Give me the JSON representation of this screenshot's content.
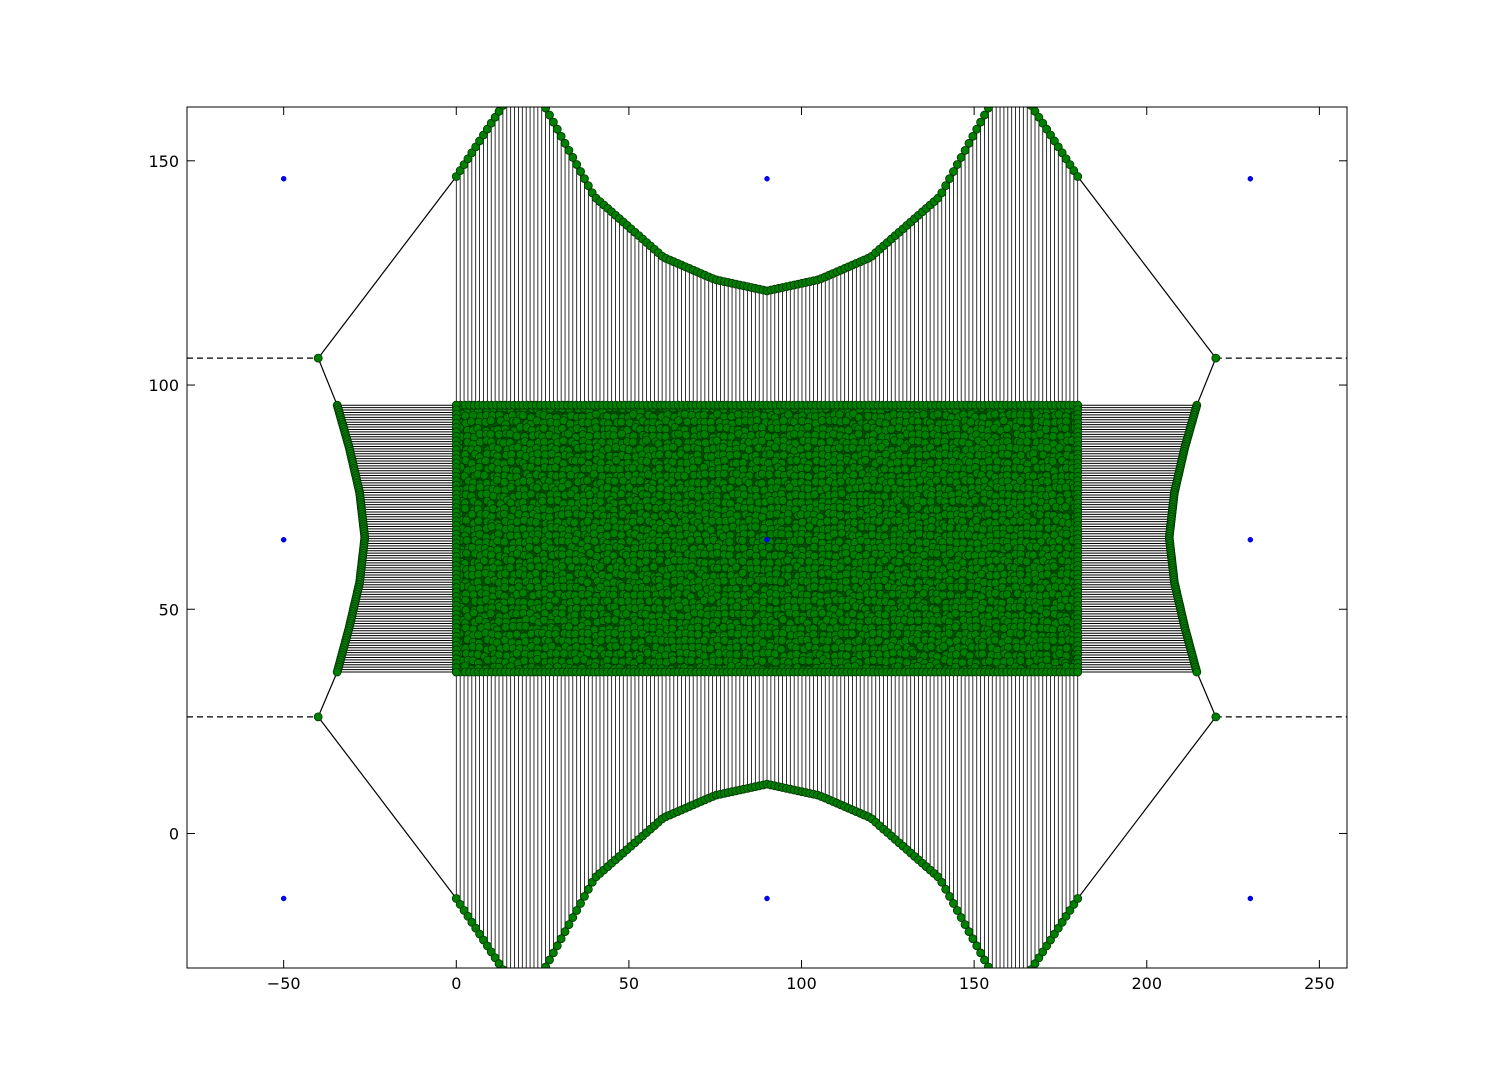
{
  "chart_data": {
    "type": "scatter",
    "title": "",
    "xlabel": "",
    "ylabel": "",
    "xlim": [
      -78,
      258
    ],
    "ylim": [
      -30,
      162
    ],
    "grid": false,
    "legend": null,
    "x_ticks": [
      -50,
      0,
      50,
      100,
      150,
      200,
      250
    ],
    "y_ticks": [
      0,
      50,
      100,
      150
    ],
    "x_tick_labels": [
      "−50",
      "0",
      "50",
      "100",
      "150",
      "200",
      "250"
    ],
    "y_tick_labels": [
      "0",
      "50",
      "100",
      "150"
    ],
    "colors": {
      "nodes": "#008000",
      "centers": "#0000ff",
      "lines": "#000000"
    },
    "center_points": {
      "x": [
        -50,
        90,
        230,
        -50,
        90,
        230,
        -50,
        90,
        230
      ],
      "y": [
        146,
        146,
        146,
        65.5,
        65.5,
        65.5,
        -14.5,
        -14.5,
        -14.5
      ]
    },
    "corner_nodes": {
      "x": [
        -40,
        220,
        -40,
        220
      ],
      "y": [
        106,
        106,
        26,
        26
      ]
    },
    "dashed_lines": [
      {
        "x": [
          -78,
          -40
        ],
        "y": [
          106,
          106
        ]
      },
      {
        "x": [
          220,
          258
        ],
        "y": [
          106,
          106
        ]
      },
      {
        "x": [
          -78,
          -40
        ],
        "y": [
          26,
          26
        ]
      },
      {
        "x": [
          220,
          258
        ],
        "y": [
          26,
          26
        ]
      }
    ],
    "diagonal_lines": [
      {
        "x": [
          -40,
          0
        ],
        "y": [
          106,
          146.5
        ]
      },
      {
        "x": [
          -40,
          0
        ],
        "y": [
          26,
          -14.5
        ]
      },
      {
        "x": [
          220,
          180
        ],
        "y": [
          106,
          146.5
        ]
      },
      {
        "x": [
          220,
          180
        ],
        "y": [
          26,
          -14.5
        ]
      },
      {
        "x": [
          -40,
          -34.5
        ],
        "y": [
          106,
          95.5
        ]
      },
      {
        "x": [
          -40,
          -34.5
        ],
        "y": [
          26,
          36
        ]
      },
      {
        "x": [
          220,
          214.5
        ],
        "y": [
          106,
          95.5
        ]
      },
      {
        "x": [
          220,
          214.5
        ],
        "y": [
          26,
          36
        ]
      }
    ],
    "dense_block": {
      "x_range": [
        0,
        180
      ],
      "y_range": [
        36,
        95.5
      ]
    },
    "vertical_strips": {
      "x_range": [
        0,
        180
      ],
      "top_y": 95.5,
      "bottom_y": 36
    },
    "horizontal_strips": {
      "left_x": 0,
      "right_x": 180,
      "y_range": [
        36,
        95.5
      ]
    },
    "curves": {
      "top_edge": {
        "x": [
          0,
          20,
          40,
          60,
          75,
          90,
          105,
          120,
          140,
          160,
          180
        ],
        "y": [
          146.5,
          170,
          142,
          128.5,
          123.5,
          121,
          123.5,
          128.5,
          142,
          170,
          146.5
        ]
      },
      "bottom_edge": {
        "x": [
          0,
          20,
          40,
          60,
          75,
          90,
          105,
          120,
          140,
          160,
          180
        ],
        "y": [
          -14.5,
          -38,
          -10,
          3.5,
          8.5,
          11,
          8.5,
          3.5,
          -10,
          -38,
          -14.5
        ]
      },
      "left_edge": {
        "x": [
          -34.5,
          -31,
          -28,
          -26.5,
          -28,
          -31,
          -34.5
        ],
        "y": [
          95.5,
          86,
          76,
          66,
          56,
          46,
          36
        ]
      },
      "right_edge": {
        "x": [
          214.5,
          211,
          208,
          206.5,
          208,
          211,
          214.5
        ],
        "y": [
          95.5,
          86,
          76,
          66,
          56,
          46,
          36
        ]
      }
    }
  }
}
